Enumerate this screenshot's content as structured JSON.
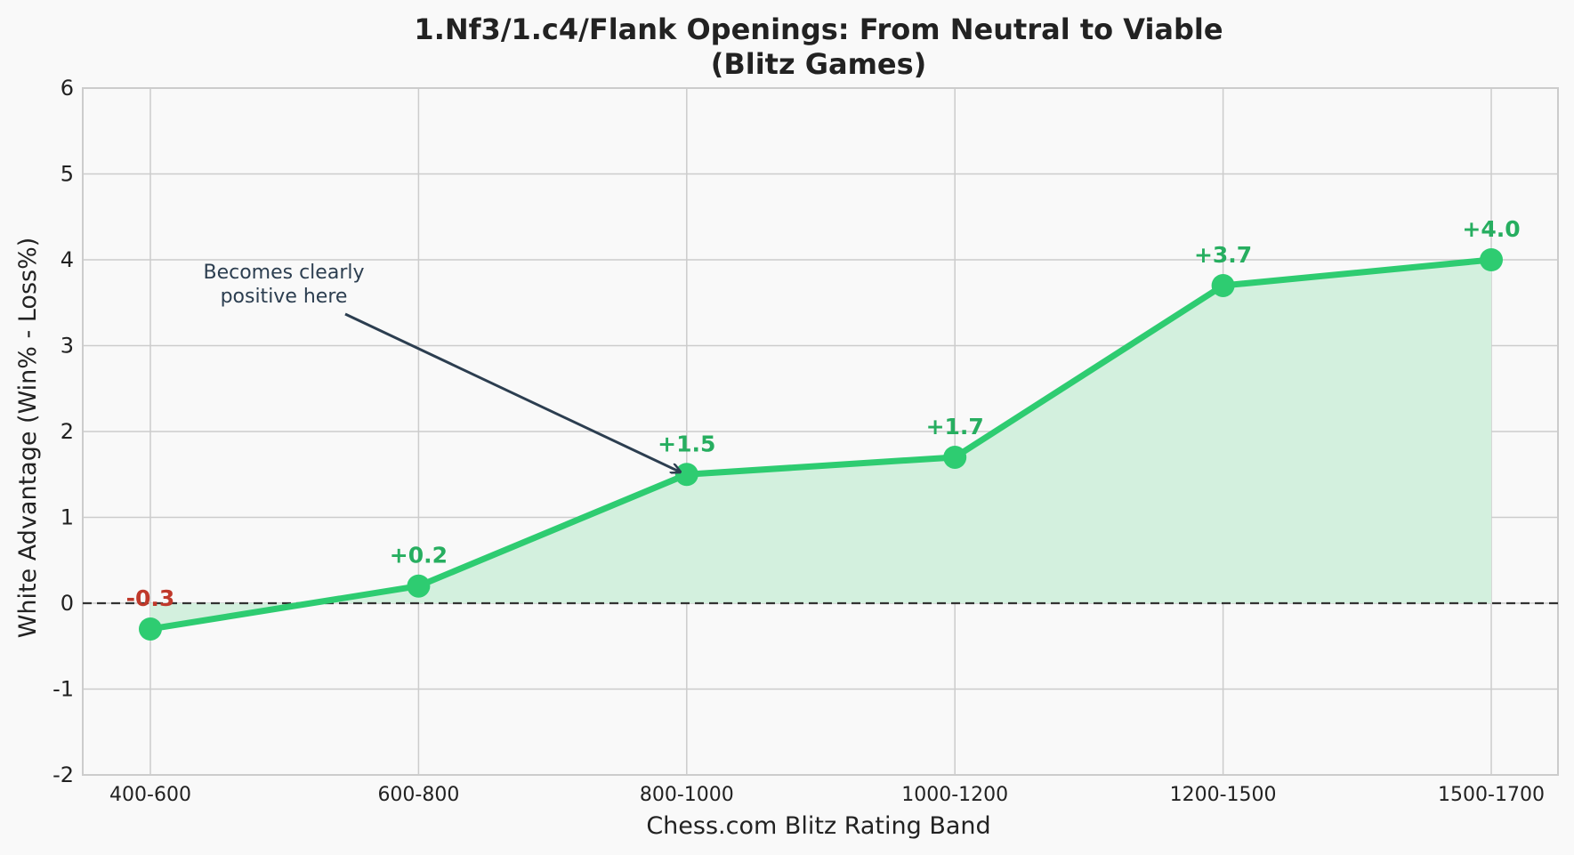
{
  "chart_data": {
    "type": "line",
    "title_lines": [
      "1.Nf3/1.c4/Flank Openings: From Neutral to Viable",
      "(Blitz Games)"
    ],
    "xlabel": "Chess.com Blitz Rating Band",
    "ylabel": "White Advantage (Win% - Loss%)",
    "categories": [
      "400-600",
      "600-800",
      "800-1000",
      "1000-1200",
      "1200-1500",
      "1500-1700"
    ],
    "values": [
      -0.3,
      0.2,
      1.5,
      1.7,
      3.7,
      4.0
    ],
    "data_labels": [
      "-0.3",
      "+0.2",
      "+1.5",
      "+1.7",
      "+3.7",
      "+4.0"
    ],
    "ylim": [
      -2,
      6
    ],
    "yticks": [
      -2,
      -1,
      0,
      1,
      2,
      3,
      4,
      5,
      6
    ],
    "grid": true,
    "reference_line": 0,
    "fill_to_zero": true,
    "annotation": {
      "lines": [
        "Becomes clearly",
        "positive here"
      ],
      "target_category": "800-1000",
      "target_value": 1.5
    },
    "colors": {
      "line": "#2ecc71",
      "fill": "#d3f0de",
      "positive_label": "#27ae60",
      "negative_label": "#c0392b",
      "annotation": "#2c3e50",
      "grid": "#cccccc",
      "reference": "#333333",
      "background": "#f9f9f9"
    }
  }
}
